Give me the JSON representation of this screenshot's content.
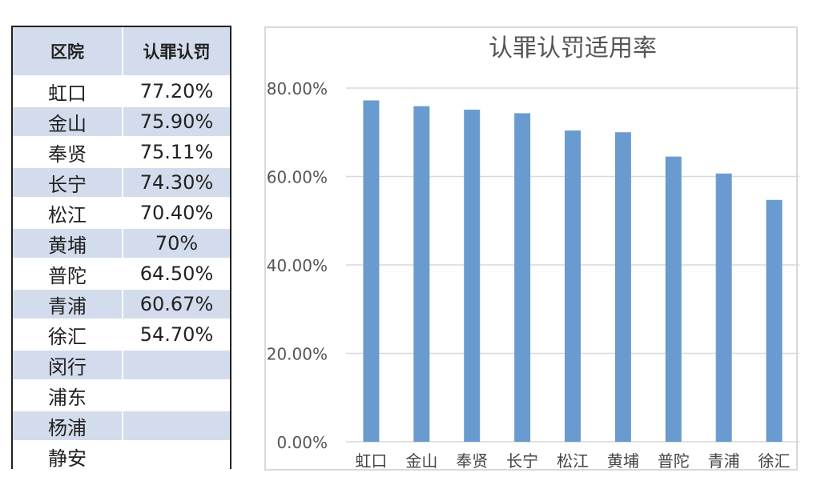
{
  "table": {
    "headers": [
      "区院",
      "认罪认罚"
    ],
    "rows": [
      {
        "name": "虹口",
        "value": "77.20%"
      },
      {
        "name": "金山",
        "value": "75.90%"
      },
      {
        "name": "奉贤",
        "value": "75.11%"
      },
      {
        "name": "长宁",
        "value": "74.30%"
      },
      {
        "name": "松江",
        "value": "70.40%"
      },
      {
        "name": "黄埔",
        "value": "70%"
      },
      {
        "name": "普陀",
        "value": "64.50%"
      },
      {
        "name": "青浦",
        "value": "60.67%"
      },
      {
        "name": "徐汇",
        "value": "54.70%"
      },
      {
        "name": "闵行",
        "value": ""
      },
      {
        "name": "浦东",
        "value": ""
      },
      {
        "name": "杨浦",
        "value": ""
      },
      {
        "name": "静安",
        "value": ""
      }
    ]
  },
  "chart_data": {
    "type": "bar",
    "title": "认罪认罚适用率",
    "categories": [
      "虹口",
      "金山",
      "奉贤",
      "长宁",
      "松江",
      "黄埔",
      "普陀",
      "青浦",
      "徐汇"
    ],
    "values": [
      77.2,
      75.9,
      75.11,
      74.3,
      70.4,
      70,
      64.5,
      60.67,
      54.7
    ],
    "ylim": [
      0,
      80
    ],
    "yticks": [
      "0.00%",
      "20.00%",
      "40.00%",
      "60.00%",
      "80.00%"
    ],
    "grid": true,
    "bar_color": "#6a9bd0"
  }
}
